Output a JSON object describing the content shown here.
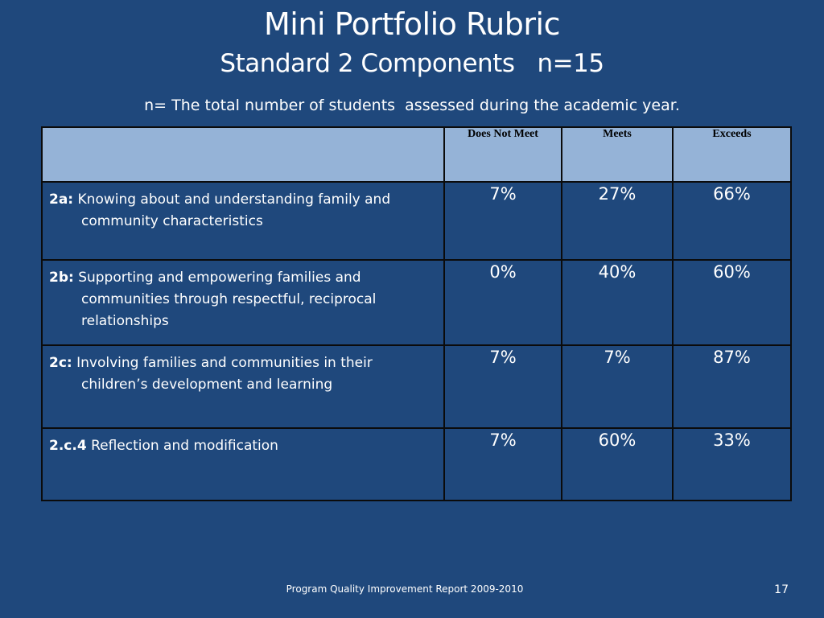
{
  "slide": {
    "title": "Mini Portfolio Rubric",
    "subtitle": "Standard 2 Components   n=15",
    "note": "n= The total number of students  assessed during the academic year.",
    "footer": "Program Quality Improvement Report 2009-2010",
    "page_number": "17"
  },
  "table": {
    "headers": [
      "",
      "Does Not Meet",
      "Meets",
      "Exceeds"
    ],
    "rows": [
      {
        "code": "2a:",
        "text": "Knowing about and understanding family and community characteristics",
        "values": [
          "7%",
          "27%",
          "66%"
        ]
      },
      {
        "code": "2b:",
        "text": "Supporting and empowering families and communities through respectful, reciprocal relationships",
        "values": [
          "0%",
          "40%",
          "60%"
        ]
      },
      {
        "code": "2c:",
        "text": "Involving families and communities in their children’s development and learning",
        "values": [
          "7%",
          "7%",
          "87%"
        ]
      },
      {
        "code": "2.c.4",
        "text": "Reflection and modification",
        "values": [
          "7%",
          "60%",
          "33%"
        ]
      }
    ]
  }
}
